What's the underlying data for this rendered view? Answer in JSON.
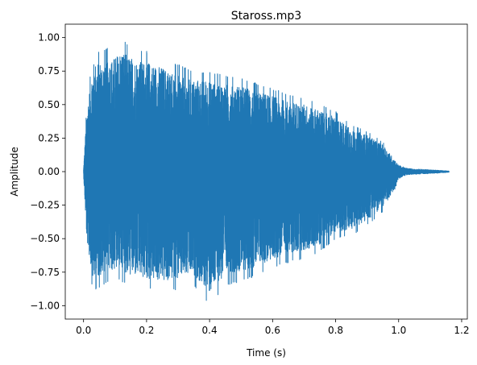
{
  "chart_data": {
    "type": "line",
    "title": "Staross.mp3",
    "xlabel": "Time (s)",
    "ylabel": "Amplitude",
    "xlim": [
      -0.058,
      1.218
    ],
    "ylim": [
      -1.1,
      1.1
    ],
    "x_ticks": [
      0.0,
      0.2,
      0.4,
      0.6,
      0.8,
      1.0,
      1.2
    ],
    "x_tick_labels": [
      "0.0",
      "0.2",
      "0.4",
      "0.6",
      "0.8",
      "1.0",
      "1.2"
    ],
    "y_ticks": [
      -1.0,
      -0.75,
      -0.5,
      -0.25,
      0.0,
      0.25,
      0.5,
      0.75,
      1.0
    ],
    "y_tick_labels": [
      "−1.00",
      "−0.75",
      "−0.50",
      "−0.25",
      "0.00",
      "0.25",
      "0.50",
      "0.75",
      "1.00"
    ],
    "grid": false,
    "series": [
      {
        "color": "#1f77b4",
        "duration": 1.16,
        "envelope": {
          "t": [
            0.0,
            0.01,
            0.03,
            0.06,
            0.1,
            0.12,
            0.15,
            0.2,
            0.25,
            0.3,
            0.35,
            0.4,
            0.45,
            0.5,
            0.55,
            0.6,
            0.65,
            0.7,
            0.75,
            0.8,
            0.85,
            0.9,
            0.95,
            0.98,
            1.0,
            1.02,
            1.05,
            1.1,
            1.16
          ],
          "pos": [
            0.02,
            0.5,
            0.88,
            0.92,
            0.93,
            1.0,
            0.93,
            0.9,
            0.85,
            0.8,
            0.75,
            0.75,
            0.72,
            0.7,
            0.66,
            0.62,
            0.58,
            0.55,
            0.5,
            0.45,
            0.35,
            0.3,
            0.22,
            0.12,
            0.05,
            0.03,
            0.02,
            0.015,
            0.005
          ],
          "neg": [
            0.02,
            0.55,
            0.9,
            0.85,
            0.8,
            0.82,
            0.85,
            0.88,
            0.9,
            0.88,
            0.85,
            1.0,
            0.85,
            0.82,
            0.78,
            0.72,
            0.68,
            0.65,
            0.6,
            0.5,
            0.48,
            0.4,
            0.3,
            0.18,
            0.06,
            0.03,
            0.02,
            0.015,
            0.005
          ]
        }
      }
    ]
  }
}
